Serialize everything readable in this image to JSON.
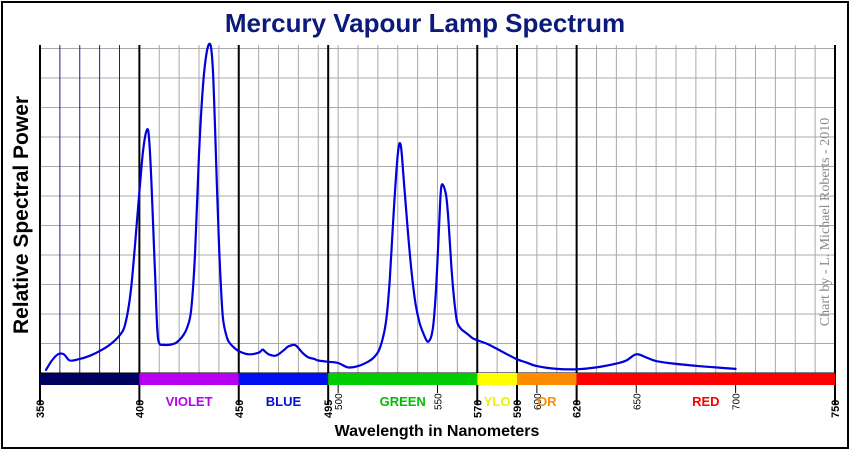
{
  "chart_data": {
    "type": "line",
    "title": "Mercury Vapour Lamp Spectrum",
    "xlabel": "Wavelength in Nanometers",
    "ylabel": "Relative Spectral Power",
    "credit": "Chart by - L. Michael Roberts - 2010",
    "xlim": [
      350,
      750
    ],
    "ylim": [
      0,
      105
    ],
    "grid": true,
    "major_ticks": [
      350,
      400,
      450,
      495,
      570,
      590,
      620,
      750
    ],
    "minor_ticks": [
      500,
      550,
      600,
      650,
      700
    ],
    "bands": [
      {
        "label": "",
        "start": 350,
        "end": 400,
        "color": "#00005e",
        "label_color": "#00005e"
      },
      {
        "label": "VIOLET",
        "start": 400,
        "end": 450,
        "color": "#b700f0",
        "label_color": "#b700f0"
      },
      {
        "label": "BLUE",
        "start": 450,
        "end": 495,
        "color": "#0010f0",
        "label_color": "#0010d8"
      },
      {
        "label": "GREEN",
        "start": 495,
        "end": 570,
        "color": "#00cc00",
        "label_color": "#00c000"
      },
      {
        "label": "YLO",
        "start": 570,
        "end": 590,
        "color": "#ffff00",
        "label_color": "#f0f000"
      },
      {
        "label": "OR",
        "start": 590,
        "end": 620,
        "color": "#ff8c00",
        "label_color": "#ff8c00"
      },
      {
        "label": "RED",
        "start": 620,
        "end": 750,
        "color": "#ff0000",
        "label_color": "#ff0000"
      }
    ],
    "series": [
      {
        "color": "#0000dd",
        "x": [
          353,
          356,
          359,
          362,
          365,
          370,
          375,
          380,
          385,
          390,
          393,
          396,
          400,
          402,
          404,
          405,
          406,
          407,
          408,
          409,
          410,
          412,
          415,
          418,
          420,
          422,
          424,
          426,
          428,
          430,
          432,
          434,
          435.8,
          437,
          438,
          439,
          440,
          441,
          442,
          443,
          444,
          445,
          447,
          450,
          455,
          460,
          462,
          463,
          465,
          468,
          470,
          473,
          475,
          478,
          480,
          482,
          485,
          488,
          490,
          495,
          500,
          505,
          510,
          515,
          518,
          521,
          524,
          526,
          528,
          530,
          531.5,
          533,
          535,
          537,
          539,
          541,
          543,
          544,
          545,
          546,
          547,
          548,
          549,
          550,
          551,
          552,
          554,
          555,
          556,
          557,
          558,
          559,
          560,
          562,
          564,
          566,
          568,
          570,
          575,
          580,
          585,
          590,
          595,
          600,
          610,
          620,
          630,
          640,
          645,
          650,
          655,
          660,
          670,
          680,
          690,
          700
        ],
        "y": [
          1,
          4,
          6,
          6,
          4,
          4.5,
          5.5,
          7,
          9,
          12,
          16,
          28,
          58,
          72,
          78,
          74,
          62,
          46,
          30,
          14,
          9.5,
          9,
          9,
          9.5,
          10.5,
          12,
          14.5,
          20,
          38,
          70,
          92,
          103,
          105,
          97,
          80,
          60,
          42,
          28,
          18,
          14,
          11.5,
          10,
          8.5,
          7,
          6,
          6.5,
          7.5,
          7,
          6,
          5.5,
          6,
          7.5,
          8.5,
          9,
          8,
          6.5,
          5,
          4.5,
          4,
          3.6,
          3.2,
          1.8,
          2.2,
          3.6,
          5,
          8,
          16,
          30,
          52,
          70,
          73,
          62,
          46,
          32,
          22,
          16,
          12.5,
          11,
          10,
          10.5,
          12,
          16,
          24,
          36,
          50,
          60,
          58,
          53,
          44,
          34,
          26,
          20,
          16,
          14,
          13,
          12,
          11,
          10.5,
          9.3,
          7.7,
          6.0,
          4.4,
          3.3,
          2.2,
          1.3,
          1.2,
          1.8,
          3,
          4,
          6,
          5,
          3.8,
          2.9,
          2.3,
          1.8,
          1.3
        ]
      }
    ]
  }
}
